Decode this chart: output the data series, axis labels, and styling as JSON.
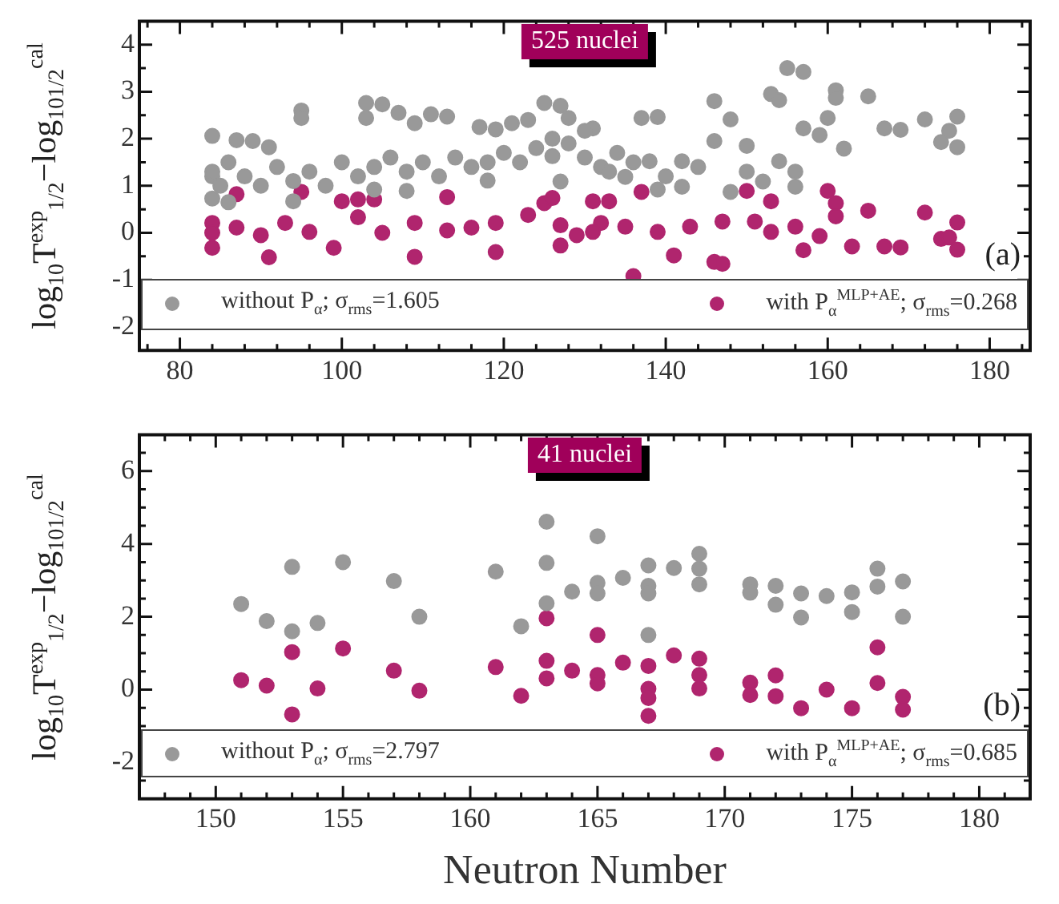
{
  "chart_data": [
    {
      "type": "scatter",
      "ylabel": "log$_{10}$T$^{exp}$$_{1/2}$−log$_{101/2}$$^{cal}$",
      "annotations": [
        "525 nuclei",
        "(a)"
      ],
      "marker": "circle",
      "legend": "bottom",
      "xlim": [
        75,
        185
      ],
      "xticks": [
        {
          "value": 76,
          "label": null
        },
        80,
        {
          "value": 84,
          "label": null
        },
        {
          "value": 88,
          "label": null
        },
        {
          "value": 92,
          "label": null
        },
        {
          "value": 96,
          "label": null
        },
        100,
        {
          "value": 104,
          "label": null
        },
        {
          "value": 108,
          "label": null
        },
        {
          "value": 112,
          "label": null
        },
        {
          "value": 116,
          "label": null
        },
        120,
        {
          "value": 124,
          "label": null
        },
        {
          "value": 128,
          "label": null
        },
        {
          "value": 132,
          "label": null
        },
        {
          "value": 136,
          "label": null
        },
        140,
        {
          "value": 144,
          "label": null
        },
        {
          "value": 148,
          "label": null
        },
        {
          "value": 152,
          "label": null
        },
        {
          "value": 156,
          "label": null
        },
        160,
        {
          "value": 164,
          "label": null
        },
        {
          "value": 168,
          "label": null
        },
        {
          "value": 172,
          "label": null
        },
        {
          "value": 176,
          "label": null
        },
        180,
        {
          "value": 184,
          "label": null
        }
      ],
      "ylim": [
        -2.5,
        4.5
      ],
      "yticks": [
        -2,
        {
          "value": -1.5,
          "label": null
        },
        -1,
        {
          "value": -0.5,
          "label": null
        },
        0,
        {
          "value": 0.5,
          "label": null
        },
        1,
        {
          "value": 1.5,
          "label": null
        },
        2,
        {
          "value": 2.5,
          "label": null
        },
        3,
        {
          "value": 3.5,
          "label": null
        },
        4
      ],
      "series": [
        {
          "name": "without P$_{α}$; σ$_{rms}$=1.605",
          "color": "#999999",
          "x": [
            84,
            84,
            84,
            87,
            89,
            91,
            95,
            95,
            103,
            103,
            105,
            107,
            109,
            111,
            113,
            117,
            119,
            121,
            123,
            125,
            127,
            128,
            131,
            86,
            94,
            104,
            108,
            118,
            126,
            127,
            84,
            85,
            86,
            88,
            90,
            92,
            94,
            96,
            98,
            100,
            102,
            104,
            106,
            108,
            110,
            112,
            114,
            116,
            118,
            120,
            122,
            124,
            126,
            128,
            130,
            132,
            134,
            136,
            140,
            144,
            150,
            156,
            155,
            157,
            161,
            161,
            165,
            167,
            169,
            172,
            174,
            175,
            176,
            176,
            162,
            159,
            153,
            146,
            148,
            137,
            139,
            154,
            156,
            152,
            148,
            142,
            139,
            135,
            130,
            154,
            150,
            146,
            142,
            138,
            133,
            157,
            160
          ],
          "values": [
            2.06,
            1.2,
            0.73,
            1.97,
            1.95,
            1.82,
            2.6,
            2.44,
            2.76,
            2.44,
            2.73,
            2.55,
            2.33,
            2.52,
            2.47,
            2.25,
            2.2,
            2.33,
            2.4,
            2.76,
            2.7,
            2.44,
            2.22,
            0.65,
            0.67,
            0.92,
            0.89,
            1.11,
            1.63,
            1.09,
            1.3,
            1.0,
            1.5,
            1.2,
            1.0,
            1.4,
            1.1,
            1.3,
            1.0,
            1.5,
            1.2,
            1.4,
            1.6,
            1.3,
            1.5,
            1.2,
            1.6,
            1.4,
            1.5,
            1.7,
            1.5,
            1.8,
            2.0,
            1.9,
            1.6,
            1.4,
            1.7,
            1.5,
            1.2,
            1.4,
            1.3,
            1.3,
            3.5,
            3.42,
            3.03,
            2.87,
            2.9,
            2.22,
            2.19,
            2.41,
            1.93,
            2.17,
            2.47,
            1.82,
            1.79,
            2.08,
            2.95,
            2.8,
            2.41,
            2.44,
            2.46,
            2.82,
            0.98,
            1.09,
            0.87,
            0.98,
            0.92,
            1.19,
            2.17,
            1.52,
            1.85,
            1.95,
            1.52,
            1.52,
            1.3,
            2.22,
            2.44
          ]
        },
        {
          "name": "with P$_{α}$$^{MLP+AE}$; σ$_{rms}$=0.268",
          "color": "#b0256e",
          "x": [
            87,
            95,
            100,
            102,
            104,
            113,
            125,
            126,
            131,
            91,
            84,
            109,
            119,
            127,
            99,
            84,
            84,
            87,
            90,
            93,
            96,
            102,
            105,
            109,
            113,
            116,
            119,
            123,
            127,
            129,
            132,
            136,
            137,
            150,
            160,
            161,
            161,
            165,
            172,
            176,
            174,
            175,
            176,
            167,
            169,
            163,
            159,
            146,
            147,
            157,
            141,
            131,
            135,
            139,
            143,
            147,
            151,
            153,
            156,
            133,
            153
          ],
          "values": [
            0.82,
            0.87,
            0.67,
            0.71,
            0.71,
            0.76,
            0.63,
            0.74,
            0.67,
            -0.52,
            -0.32,
            -0.51,
            -0.41,
            -0.27,
            -0.32,
            0.21,
            0,
            0.11,
            -0.05,
            0.21,
            0.02,
            0.33,
            0,
            0.21,
            0.05,
            0.11,
            0.21,
            0.38,
            0.16,
            -0.05,
            0.21,
            -0.92,
            0.87,
            0.89,
            0.89,
            0.63,
            0.35,
            0.47,
            0.43,
            0.22,
            -0.13,
            -0.1,
            -0.36,
            -0.29,
            -0.31,
            -0.29,
            -0.07,
            -0.62,
            -0.66,
            -0.37,
            -0.48,
            0.02,
            0.13,
            0.02,
            0.13,
            0.24,
            0.24,
            0.02,
            0.13,
            0.67,
            0.67
          ]
        }
      ]
    },
    {
      "type": "scatter",
      "xlabel": "Neutron Number",
      "ylabel": "log$_{10}$T$^{exp}$$_{1/2}$−log$_{101/2}$$^{cal}$",
      "annotations": [
        "41 nuclei",
        "(b)"
      ],
      "marker": "circle",
      "legend": "bottom",
      "xlim": [
        147,
        182
      ],
      "xticks": [
        {
          "value": 148,
          "label": null
        },
        {
          "value": 149,
          "label": null
        },
        150,
        {
          "value": 151,
          "label": null
        },
        {
          "value": 152,
          "label": null
        },
        {
          "value": 153,
          "label": null
        },
        {
          "value": 154,
          "label": null
        },
        155,
        {
          "value": 156,
          "label": null
        },
        {
          "value": 157,
          "label": null
        },
        {
          "value": 158,
          "label": null
        },
        {
          "value": 159,
          "label": null
        },
        160,
        {
          "value": 161,
          "label": null
        },
        {
          "value": 162,
          "label": null
        },
        {
          "value": 163,
          "label": null
        },
        {
          "value": 164,
          "label": null
        },
        165,
        {
          "value": 166,
          "label": null
        },
        {
          "value": 167,
          "label": null
        },
        {
          "value": 168,
          "label": null
        },
        {
          "value": 169,
          "label": null
        },
        170,
        {
          "value": 171,
          "label": null
        },
        {
          "value": 172,
          "label": null
        },
        {
          "value": 173,
          "label": null
        },
        {
          "value": 174,
          "label": null
        },
        175,
        {
          "value": 176,
          "label": null
        },
        {
          "value": 177,
          "label": null
        },
        {
          "value": 178,
          "label": null
        },
        {
          "value": 179,
          "label": null
        },
        180,
        {
          "value": 181,
          "label": null
        }
      ],
      "ylim": [
        -3,
        7
      ],
      "yticks": [
        {
          "value": -2.5,
          "label": null
        },
        -2,
        {
          "value": -1.5,
          "label": null
        },
        {
          "value": -1,
          "label": null
        },
        {
          "value": -0.5,
          "label": null
        },
        0,
        {
          "value": 0.5,
          "label": null
        },
        {
          "value": 1,
          "label": null
        },
        {
          "value": 1.5,
          "label": null
        },
        2,
        {
          "value": 2.5,
          "label": null
        },
        {
          "value": 3,
          "label": null
        },
        {
          "value": 3.5,
          "label": null
        },
        4,
        {
          "value": 4.5,
          "label": null
        },
        {
          "value": 5,
          "label": null
        },
        {
          "value": 5.5,
          "label": null
        },
        6,
        {
          "value": 6.5,
          "label": null
        }
      ],
      "series": [
        {
          "name": "without P$_{α}$; σ$_{rms}$=2.797",
          "color": "#999999",
          "x": [
            151,
            152,
            153,
            153,
            154,
            155,
            157,
            158,
            161,
            162,
            163,
            163,
            163,
            164,
            165,
            165,
            165,
            166,
            167,
            167,
            167,
            167,
            168,
            169,
            169,
            169,
            171,
            171,
            172,
            172,
            173,
            173,
            174,
            175,
            175,
            176,
            176,
            177,
            177
          ],
          "values": [
            2.35,
            1.88,
            3.37,
            1.6,
            1.83,
            3.5,
            2.98,
            2.0,
            3.24,
            1.74,
            4.61,
            3.48,
            2.37,
            2.69,
            4.21,
            2.93,
            2.64,
            3.07,
            3.41,
            2.85,
            2.64,
            1.5,
            3.34,
            3.73,
            3.32,
            2.89,
            2.89,
            2.66,
            2.85,
            2.33,
            2.64,
            1.98,
            2.57,
            2.67,
            2.13,
            3.32,
            2.83,
            2.97,
            2.0
          ]
        },
        {
          "name": "with P$_{α}$$^{MLP+AE}$; σ$_{rms}$=0.685",
          "color": "#b0256e",
          "x": [
            151,
            152,
            153,
            153,
            154,
            155,
            157,
            158,
            161,
            162,
            163,
            163,
            163,
            164,
            165,
            165,
            165,
            166,
            167,
            167,
            167,
            167,
            168,
            169,
            169,
            169,
            171,
            171,
            172,
            172,
            173,
            174,
            175,
            176,
            176,
            177,
            177
          ],
          "values": [
            0.26,
            0.11,
            1.03,
            -0.68,
            0.03,
            1.13,
            0.52,
            -0.03,
            0.62,
            -0.17,
            1.96,
            0.79,
            0.31,
            0.52,
            1.5,
            0.4,
            0.17,
            0.74,
            0.65,
            0.02,
            -0.23,
            -0.72,
            0.94,
            0.85,
            0.4,
            0.03,
            0.19,
            -0.15,
            0.39,
            -0.18,
            -0.51,
            0,
            -0.51,
            1.16,
            0.18,
            -0.2,
            -0.55
          ]
        }
      ]
    }
  ]
}
